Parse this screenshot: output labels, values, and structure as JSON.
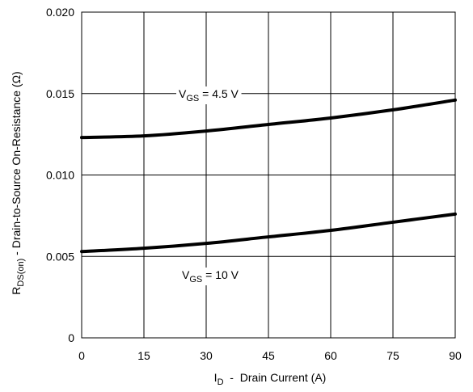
{
  "chart_data": {
    "type": "line",
    "xlabel": {
      "main": "I",
      "sub": "D",
      "rest": "  -  Drain Current (A)"
    },
    "ylabel": {
      "main": "R",
      "sub": "DS(on)",
      "rest": " - Drain-to-Source On-Resistance (Ω)"
    },
    "xlim": [
      0,
      90
    ],
    "ylim": [
      0,
      0.02
    ],
    "x_ticks": [
      0,
      15,
      30,
      45,
      60,
      75,
      90
    ],
    "x_tick_labels": [
      "0",
      "15",
      "30",
      "45",
      "60",
      "75",
      "90"
    ],
    "y_ticks": [
      0,
      0.005,
      0.01,
      0.015,
      0.02
    ],
    "y_tick_labels": [
      "0",
      "0.005",
      "0.010",
      "0.015",
      "0.020"
    ],
    "grid": true,
    "series": [
      {
        "label_main": "V",
        "label_sub": "GS",
        "label_rest": " = 4.5 V",
        "x": [
          0,
          15,
          30,
          45,
          60,
          75,
          90
        ],
        "y": [
          0.0123,
          0.0124,
          0.0127,
          0.0131,
          0.0135,
          0.014,
          0.0146
        ]
      },
      {
        "label_main": "V",
        "label_sub": "GS",
        "label_rest": " = 10 V",
        "x": [
          0,
          15,
          30,
          45,
          60,
          75,
          90
        ],
        "y": [
          0.0053,
          0.0055,
          0.0058,
          0.0062,
          0.0066,
          0.0071,
          0.0076
        ]
      }
    ]
  }
}
